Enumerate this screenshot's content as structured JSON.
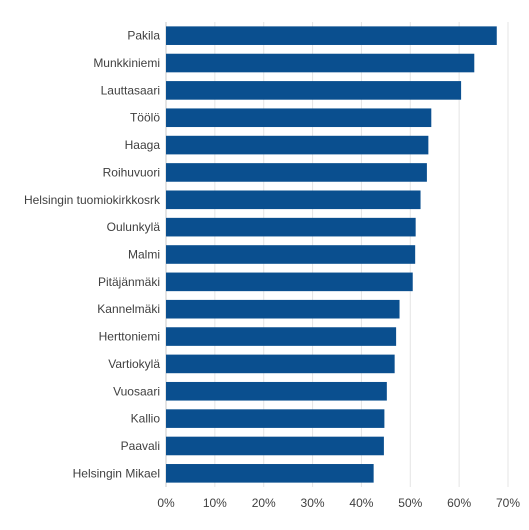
{
  "chart_data": {
    "type": "bar",
    "orientation": "horizontal",
    "categories": [
      "Pakila",
      "Munkkiniemi",
      "Lauttasaari",
      "Töölö",
      "Haaga",
      "Roihuvuori",
      "Helsingin tuomiokirkkosrk",
      "Oulunkylä",
      "Malmi",
      "Pitäjänmäki",
      "Kannelmäki",
      "Herttoniemi",
      "Vartiokylä",
      "Vuosaari",
      "Kallio",
      "Paavali",
      "Helsingin Mikael"
    ],
    "values": [
      67.7,
      63.1,
      60.4,
      54.3,
      53.7,
      53.4,
      52.1,
      51.1,
      51.0,
      50.5,
      47.8,
      47.1,
      46.8,
      45.2,
      44.7,
      44.6,
      42.5
    ],
    "value_unit": "%",
    "xlim": [
      0,
      70
    ],
    "xticks": [
      "0%",
      "10%",
      "20%",
      "30%",
      "40%",
      "50%",
      "60%",
      "70%"
    ],
    "grid": true,
    "bar_color": "#0a4f8f",
    "title": "",
    "xlabel": "",
    "ylabel": ""
  }
}
